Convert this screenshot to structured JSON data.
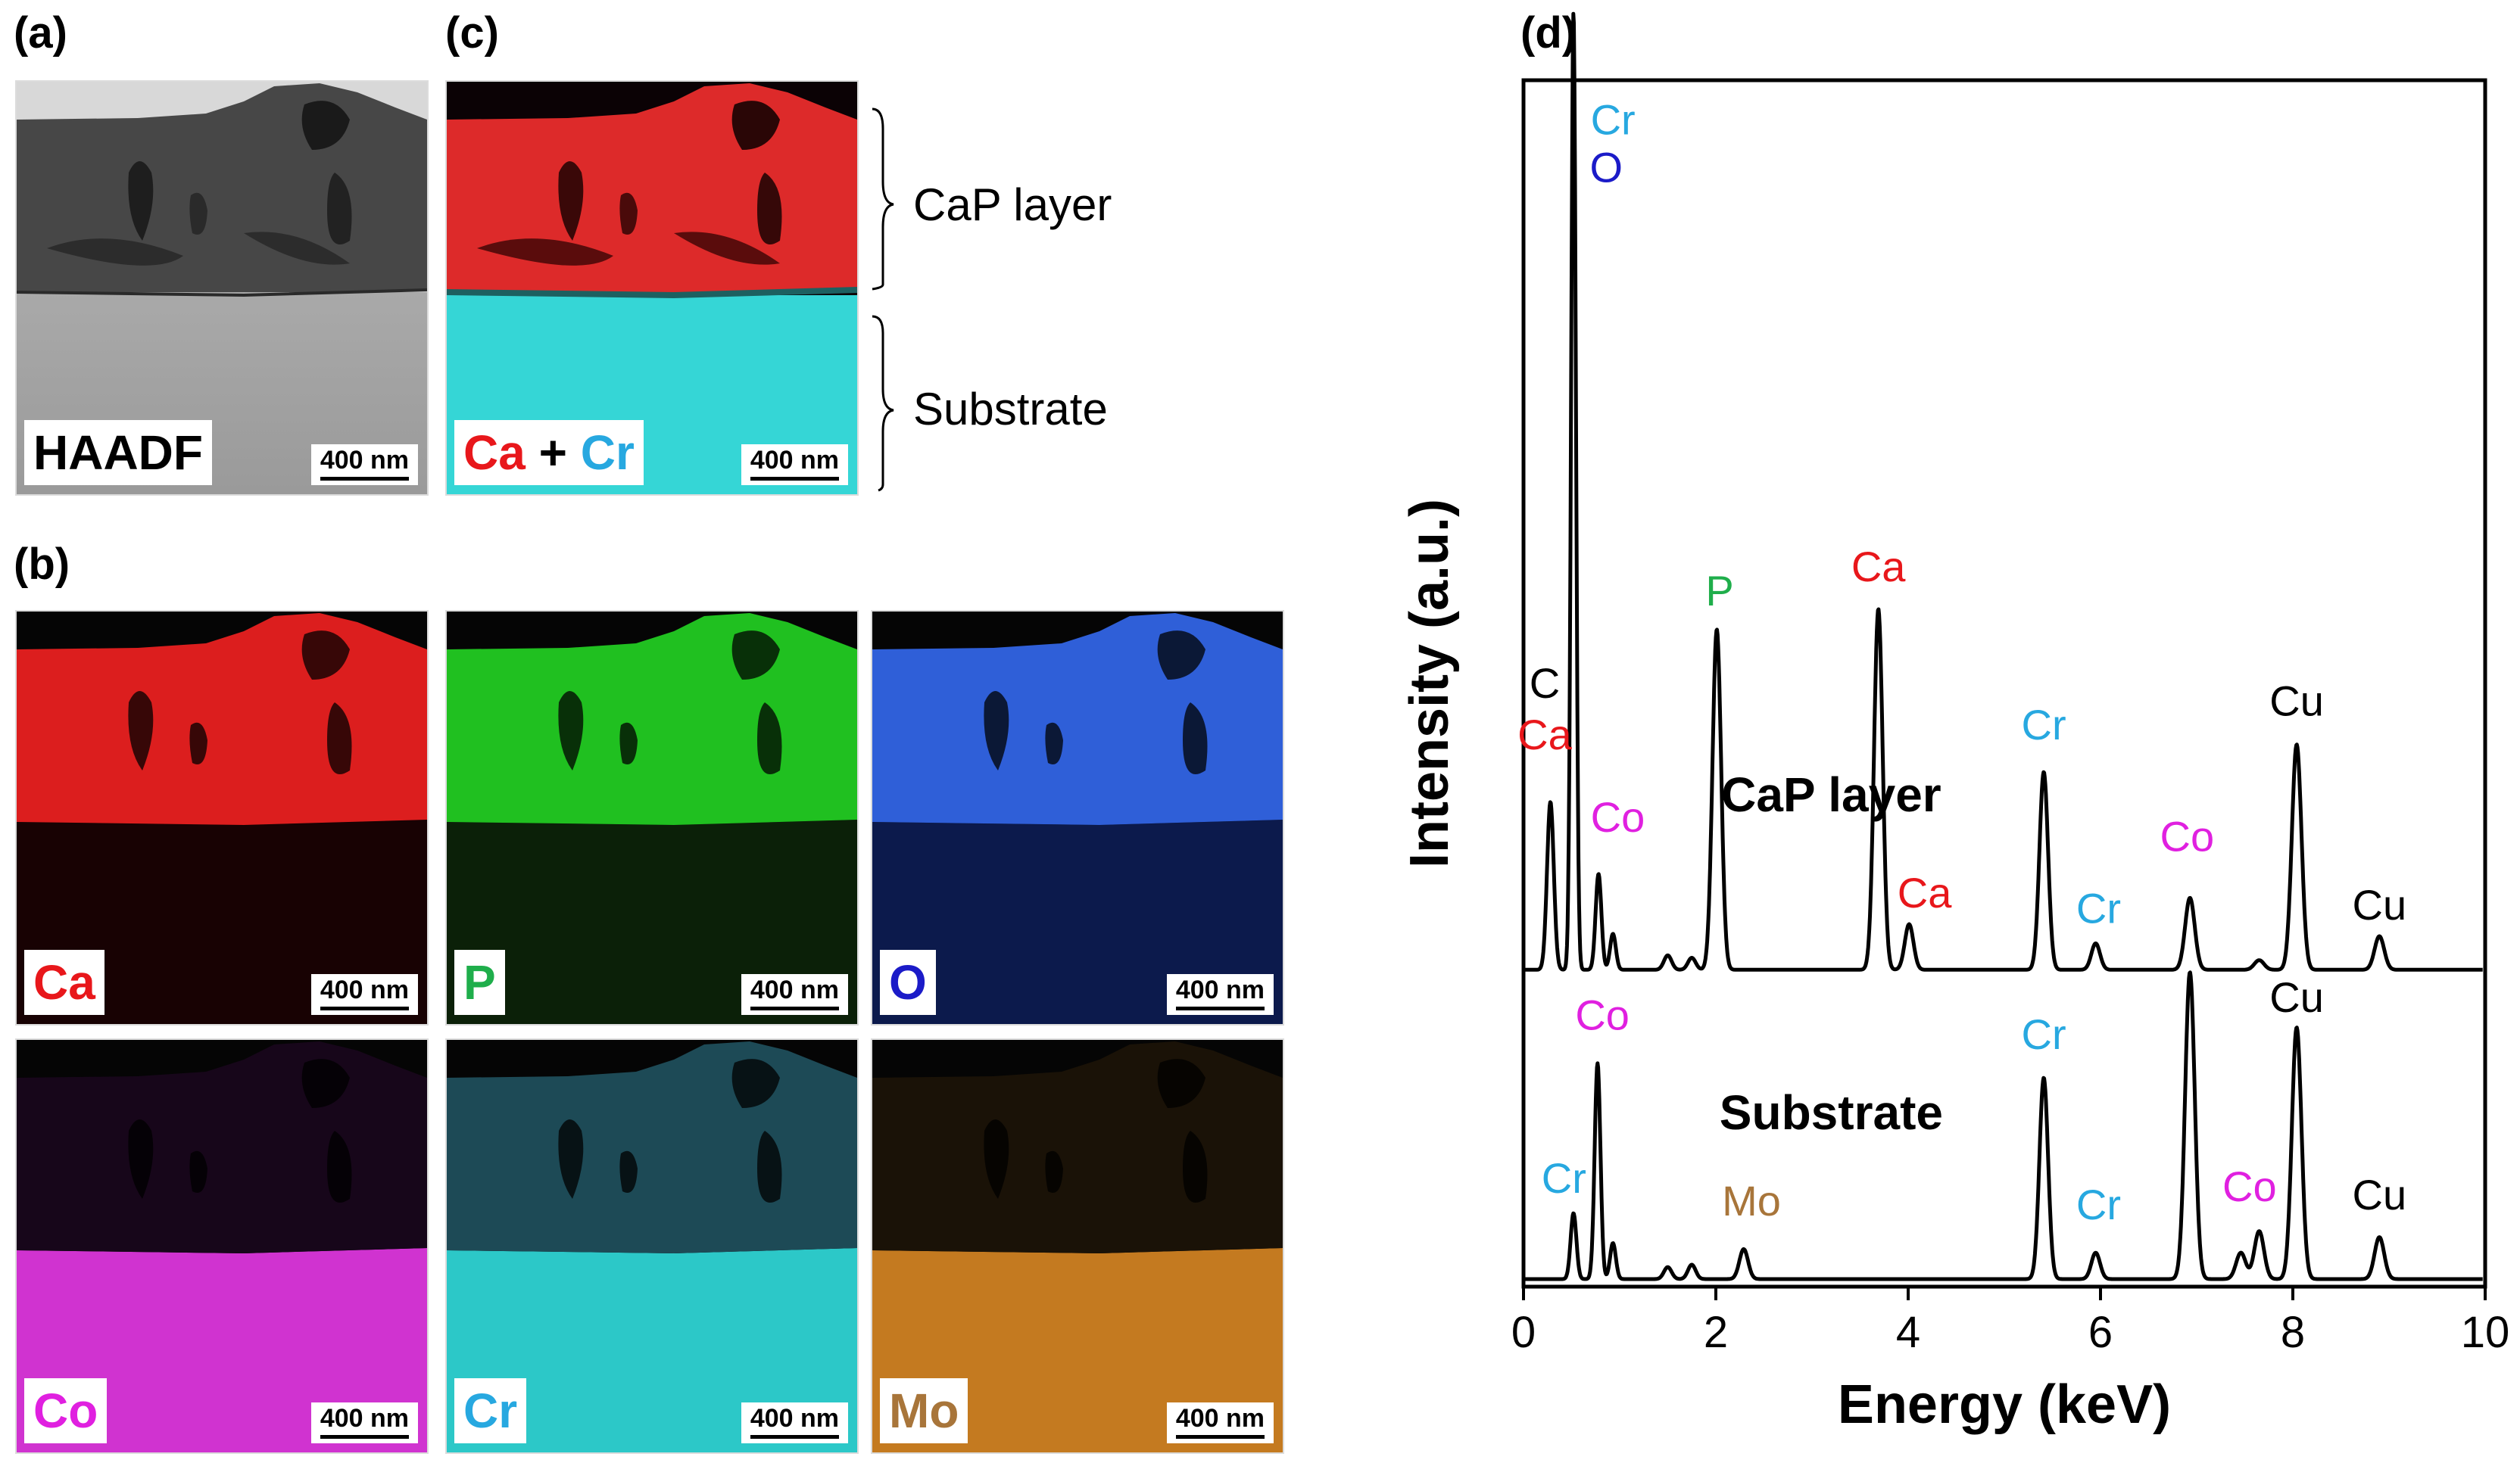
{
  "panels": {
    "a": "(a)",
    "b": "(b)",
    "c": "(c)",
    "d": "(d)"
  },
  "scale_text": "400 nm",
  "haadf": {
    "label": "HAADF"
  },
  "overlay": {
    "ca": "Ca",
    "plus": "+",
    "cr": "Cr",
    "ca_color": "#e8171b",
    "cr_color": "#27a8e0"
  },
  "braces": {
    "top": "CaP layer",
    "bottom": "Substrate"
  },
  "maps": [
    {
      "key": "ca",
      "label": "Ca",
      "label_color": "#e8171b",
      "layer_color": "#dc1e1e",
      "substrate_color": "#180203"
    },
    {
      "key": "p",
      "label": "P",
      "label_color": "#1fae4b",
      "layer_color": "#20c020",
      "substrate_color": "#0b2008"
    },
    {
      "key": "o",
      "label": "O",
      "label_color": "#1b1bc8",
      "layer_color": "#2f5fd8",
      "substrate_color": "#0c1a4c"
    },
    {
      "key": "co",
      "label": "Co",
      "label_color": "#e020e0",
      "layer_color": "#17061a",
      "substrate_color": "#d033d0"
    },
    {
      "key": "cr",
      "label": "Cr",
      "label_color": "#27a8e0",
      "layer_color": "#1d4a56",
      "substrate_color": "#2cc8c8"
    },
    {
      "key": "mo",
      "label": "Mo",
      "label_color": "#a8753a",
      "layer_color": "#1a1207",
      "substrate_color": "#c47a20"
    }
  ],
  "chart_data": {
    "type": "line",
    "title": "",
    "xlabel": "Energy (keV)",
    "ylabel": "Intensity (a.u.)",
    "xlim": [
      0,
      10
    ],
    "x_ticks": [
      "0",
      "2",
      "4",
      "6",
      "8",
      "10"
    ],
    "series": [
      {
        "name": "CaP layer",
        "baseline": 0.258,
        "peaks": [
          {
            "e": 0.28,
            "h": 0.14,
            "w": 0.035
          },
          {
            "e": 0.52,
            "h": 0.8,
            "w": 0.025
          },
          {
            "e": 0.78,
            "h": 0.08,
            "w": 0.03
          },
          {
            "e": 0.93,
            "h": 0.03,
            "w": 0.03
          },
          {
            "e": 1.5,
            "h": 0.012,
            "w": 0.04
          },
          {
            "e": 1.75,
            "h": 0.01,
            "w": 0.04
          },
          {
            "e": 2.01,
            "h": 0.284,
            "w": 0.045
          },
          {
            "e": 3.69,
            "h": 0.301,
            "w": 0.045
          },
          {
            "e": 4.01,
            "h": 0.038,
            "w": 0.045
          },
          {
            "e": 5.41,
            "h": 0.165,
            "w": 0.045
          },
          {
            "e": 5.95,
            "h": 0.022,
            "w": 0.045
          },
          {
            "e": 6.93,
            "h": 0.06,
            "w": 0.05
          },
          {
            "e": 7.65,
            "h": 0.008,
            "w": 0.05
          },
          {
            "e": 8.04,
            "h": 0.188,
            "w": 0.05
          },
          {
            "e": 8.9,
            "h": 0.028,
            "w": 0.05
          }
        ]
      },
      {
        "name": "Substrate",
        "baseline": 0.0,
        "peaks": [
          {
            "e": 0.52,
            "h": 0.055,
            "w": 0.03
          },
          {
            "e": 0.77,
            "h": 0.18,
            "w": 0.03
          },
          {
            "e": 0.93,
            "h": 0.03,
            "w": 0.03
          },
          {
            "e": 1.5,
            "h": 0.01,
            "w": 0.04
          },
          {
            "e": 1.75,
            "h": 0.012,
            "w": 0.04
          },
          {
            "e": 2.29,
            "h": 0.025,
            "w": 0.045
          },
          {
            "e": 5.41,
            "h": 0.168,
            "w": 0.045
          },
          {
            "e": 5.95,
            "h": 0.022,
            "w": 0.045
          },
          {
            "e": 6.93,
            "h": 0.256,
            "w": 0.05
          },
          {
            "e": 7.46,
            "h": 0.022,
            "w": 0.05
          },
          {
            "e": 7.65,
            "h": 0.04,
            "w": 0.05
          },
          {
            "e": 8.04,
            "h": 0.21,
            "w": 0.05
          },
          {
            "e": 8.9,
            "h": 0.035,
            "w": 0.05
          }
        ]
      }
    ],
    "series_labels": [
      {
        "text": "CaP layer",
        "x": 3.2,
        "y": 0.39
      },
      {
        "text": "Substrate",
        "x": 3.2,
        "y": 0.125
      }
    ],
    "annotations": [
      {
        "text": "Cr",
        "x": 0.93,
        "y": 0.955,
        "color": "#27a8e0"
      },
      {
        "text": "O",
        "x": 0.86,
        "y": 0.915,
        "color": "#1b1bc8"
      },
      {
        "text": "C",
        "x": 0.22,
        "y": 0.485,
        "color": "#000000"
      },
      {
        "text": "Ca",
        "x": 0.22,
        "y": 0.442,
        "color": "#e8171b"
      },
      {
        "text": "Co",
        "x": 0.98,
        "y": 0.373,
        "color": "#e020e0"
      },
      {
        "text": "P",
        "x": 2.04,
        "y": 0.562,
        "color": "#1fae4b"
      },
      {
        "text": "Ca",
        "x": 3.69,
        "y": 0.582,
        "color": "#e8171b"
      },
      {
        "text": "Ca",
        "x": 4.17,
        "y": 0.31,
        "color": "#e8171b"
      },
      {
        "text": "Cr",
        "x": 5.41,
        "y": 0.45,
        "color": "#27a8e0"
      },
      {
        "text": "Cr",
        "x": 5.98,
        "y": 0.297,
        "color": "#27a8e0"
      },
      {
        "text": "Co",
        "x": 6.9,
        "y": 0.357,
        "color": "#e020e0"
      },
      {
        "text": "Cu",
        "x": 8.04,
        "y": 0.47,
        "color": "#000000"
      },
      {
        "text": "Cu",
        "x": 8.9,
        "y": 0.3,
        "color": "#000000"
      },
      {
        "text": "Co",
        "x": 0.82,
        "y": 0.208,
        "color": "#e020e0"
      },
      {
        "text": "Cr",
        "x": 5.41,
        "y": 0.192,
        "color": "#27a8e0"
      },
      {
        "text": "Cr",
        "x": 0.42,
        "y": 0.072,
        "color": "#27a8e0"
      },
      {
        "text": "Mo",
        "x": 2.37,
        "y": 0.053,
        "color": "#a8753a"
      },
      {
        "text": "Cr",
        "x": 5.98,
        "y": 0.05,
        "color": "#27a8e0"
      },
      {
        "text": "Co",
        "x": 7.55,
        "y": 0.065,
        "color": "#e020e0"
      },
      {
        "text": "Cu",
        "x": 8.04,
        "y": 0.223,
        "color": "#000000"
      },
      {
        "text": "Cu",
        "x": 8.9,
        "y": 0.058,
        "color": "#000000"
      }
    ]
  }
}
